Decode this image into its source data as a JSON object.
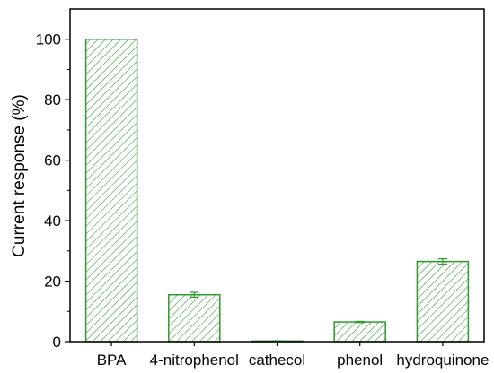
{
  "chart_data": {
    "type": "bar",
    "categories": [
      "BPA",
      "4-nitrophenol",
      "cathecol",
      "phenol",
      "hydroquinone"
    ],
    "values": [
      100,
      15.5,
      0.2,
      6.5,
      26.5
    ],
    "errors": [
      0,
      0.8,
      0.1,
      0.2,
      0.9
    ],
    "xlabel": "",
    "ylabel": "Current response (%)",
    "ylim": [
      0,
      110
    ],
    "yticks": [
      0,
      20,
      40,
      60,
      80,
      100
    ],
    "grid": false,
    "bar_color": "#2e9a2e",
    "bar_fill": "hatched"
  }
}
